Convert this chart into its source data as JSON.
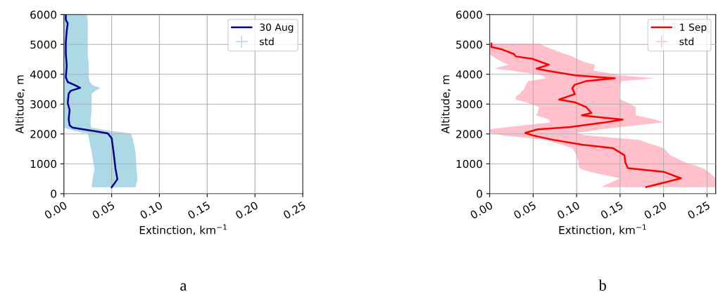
{
  "chart_data": [
    {
      "type": "line",
      "orientation": "horizontal",
      "xlabel": "Extinction, km$^{−1}$",
      "ylabel": "Altitude, m",
      "annotations": [
        "a"
      ],
      "xlim": [
        0,
        0.25
      ],
      "xticks": [
        {
          "value": 0,
          "label": "0.00"
        },
        0.05,
        {
          "value": 0.1,
          "label": "0.10"
        },
        0.15,
        {
          "value": 0.2,
          "label": "0.20"
        },
        0.25
      ],
      "ylim": [
        0,
        6000
      ],
      "yticks": [
        0,
        1000,
        2000,
        3000,
        4000,
        5000,
        6000
      ],
      "grid": true,
      "legend": "top right",
      "series": [
        {
          "name": "30 Aug",
          "color": "#00008b",
          "x": [
            212,
            486,
            839,
            1388,
            1859,
            2016,
            2094,
            2212,
            2290,
            2486,
            2800,
            3035,
            3349,
            3443,
            3545,
            3624,
            3741,
            3898,
            4290,
            4682,
            5075,
            5467,
            5702,
            5820,
            6000
          ],
          "values": [
            0.05,
            0.056,
            0.054,
            0.052,
            0.05,
            0.046,
            0.032,
            0.009,
            0.006,
            0.005,
            0.006,
            0.004,
            0.005,
            0.007,
            0.017,
            0.012,
            0.004,
            0.002,
            0.003,
            0.002,
            0.002,
            0.003,
            0.004,
            0.002,
            0.002
          ],
          "lower": [
            0.029,
            0.03,
            0.032,
            0.029,
            0.026,
            0.025,
            0.012,
            0,
            0,
            0,
            0,
            0,
            0,
            0,
            0,
            0,
            0,
            0,
            0,
            0,
            0,
            0,
            0,
            0,
            0
          ],
          "upper": [
            0.075,
            0.077,
            0.076,
            0.075,
            0.072,
            0.07,
            0.05,
            0.029,
            0.028,
            0.028,
            0.029,
            0.029,
            0.029,
            0.033,
            0.038,
            0.031,
            0.027,
            0.026,
            0.026,
            0.025,
            0.025,
            0.025,
            0.025,
            0.025,
            0.024
          ]
        },
        {
          "name": "std",
          "type": "area",
          "color": "#add8e6"
        }
      ]
    },
    {
      "type": "line",
      "orientation": "horizontal",
      "xlabel": "Extinction, km$^{−1}$",
      "ylabel": "Altitude, m",
      "annotations": [
        "b"
      ],
      "xlim": [
        0,
        0.26
      ],
      "xticks": [
        {
          "value": 0,
          "label": "0.00"
        },
        0.05,
        {
          "value": 0.1,
          "label": "0.10"
        },
        0.15,
        {
          "value": 0.2,
          "label": "0.20"
        },
        0.25
      ],
      "ylim": [
        0,
        6000
      ],
      "yticks": [
        0,
        1000,
        2000,
        3000,
        4000,
        5000,
        6000
      ],
      "grid": true,
      "legend": "top right",
      "series": [
        {
          "name": "1 Sep",
          "color": "#ff0000",
          "x": [
            221,
            513,
            733,
            852,
            1049,
            1285,
            1522,
            1640,
            1798,
            1956,
            2035,
            2153,
            2231,
            2389,
            2484,
            2547,
            2626,
            2704,
            2901,
            3059,
            3154,
            3256,
            3335,
            3532,
            3651,
            3769,
            3864,
            3966,
            4123,
            4187,
            4321,
            4400,
            4518,
            4597,
            4676,
            4833,
            4912,
            5031
          ],
          "values": [
            0.18,
            0.22,
            0.2,
            0.159,
            0.156,
            0.155,
            0.142,
            0.106,
            0.074,
            0.049,
            0.041,
            0.055,
            0.092,
            0.133,
            0.153,
            0.13,
            0.106,
            0.117,
            0.111,
            0.098,
            0.08,
            0.09,
            0.098,
            0.095,
            0.098,
            0.111,
            0.144,
            0.098,
            0.065,
            0.054,
            0.068,
            0.06,
            0.049,
            0.03,
            0.028,
            0.014,
            0.002,
            0.002
          ],
          "lower": [
            0.128,
            0.15,
            0.115,
            0.103,
            0.102,
            0.1,
            0.095,
            0.082,
            0.065,
            0.015,
            0,
            0,
            0.02,
            0.07,
            0.068,
            0.062,
            0.053,
            0.055,
            0.057,
            0.042,
            0.03,
            0.03,
            0.034,
            0.04,
            0.042,
            0.044,
            0.065,
            0.06,
            0.025,
            0.005,
            0.022,
            0.015,
            0.008,
            0.003,
            0,
            0,
            0,
            0
          ],
          "upper": [
            0.26,
            0.26,
            0.252,
            0.245,
            0.225,
            0.208,
            0.2,
            0.188,
            0.172,
            0.11,
            0.1,
            0.128,
            0.15,
            0.2,
            0.19,
            0.18,
            0.168,
            0.168,
            0.168,
            0.158,
            0.15,
            0.149,
            0.149,
            0.149,
            0.15,
            0.152,
            0.19,
            0.15,
            0.12,
            0.12,
            0.121,
            0.11,
            0.1,
            0.095,
            0.087,
            0.072,
            0.065,
            0.057
          ]
        },
        {
          "name": "std",
          "type": "area",
          "color": "#ffc0cb"
        }
      ]
    }
  ]
}
